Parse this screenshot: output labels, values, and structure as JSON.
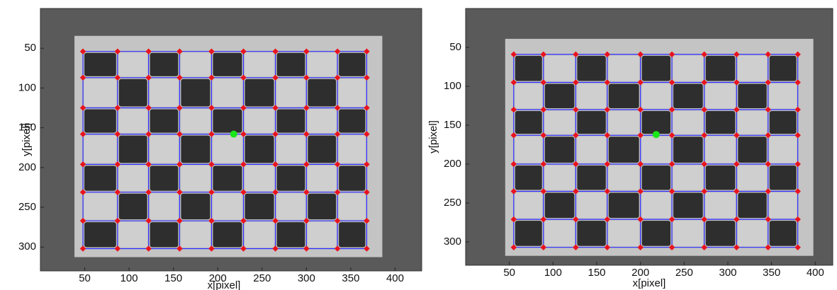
{
  "chart_data": [
    {
      "type": "image",
      "xlabel": "x[pixel]",
      "ylabel": "y[pixel]",
      "xlim": [
        0,
        430
      ],
      "ylim": [
        0,
        330
      ],
      "xticks": [
        50,
        100,
        150,
        200,
        250,
        300,
        350,
        400
      ],
      "yticks": [
        50,
        100,
        150,
        200,
        250,
        300
      ],
      "corners_x": [
        48,
        87,
        122,
        157,
        193,
        229,
        265,
        300,
        335,
        368
      ],
      "corners_y": [
        54,
        87,
        125,
        158,
        196,
        231,
        267,
        302
      ],
      "corner_color": "#e8141e",
      "line_color": "#2a2aff",
      "origin": {
        "x": 218,
        "y": 158,
        "color": "#19e619"
      }
    },
    {
      "type": "image",
      "xlabel": "x[pixel]",
      "ylabel": "y[pixel]",
      "xlim": [
        0,
        420
      ],
      "ylim": [
        0,
        330
      ],
      "xticks": [
        50,
        100,
        150,
        200,
        250,
        300,
        350,
        400
      ],
      "yticks": [
        50,
        100,
        150,
        200,
        250,
        300
      ],
      "corners_x": [
        55,
        89,
        126,
        162,
        200,
        236,
        273,
        310,
        346,
        380
      ],
      "corners_y": [
        59,
        95,
        130,
        163,
        200,
        235,
        271,
        307
      ],
      "corner_color": "#e8141e",
      "line_color": "#2a2aff",
      "origin": {
        "x": 218,
        "y": 162,
        "color": "#19e619"
      }
    }
  ]
}
